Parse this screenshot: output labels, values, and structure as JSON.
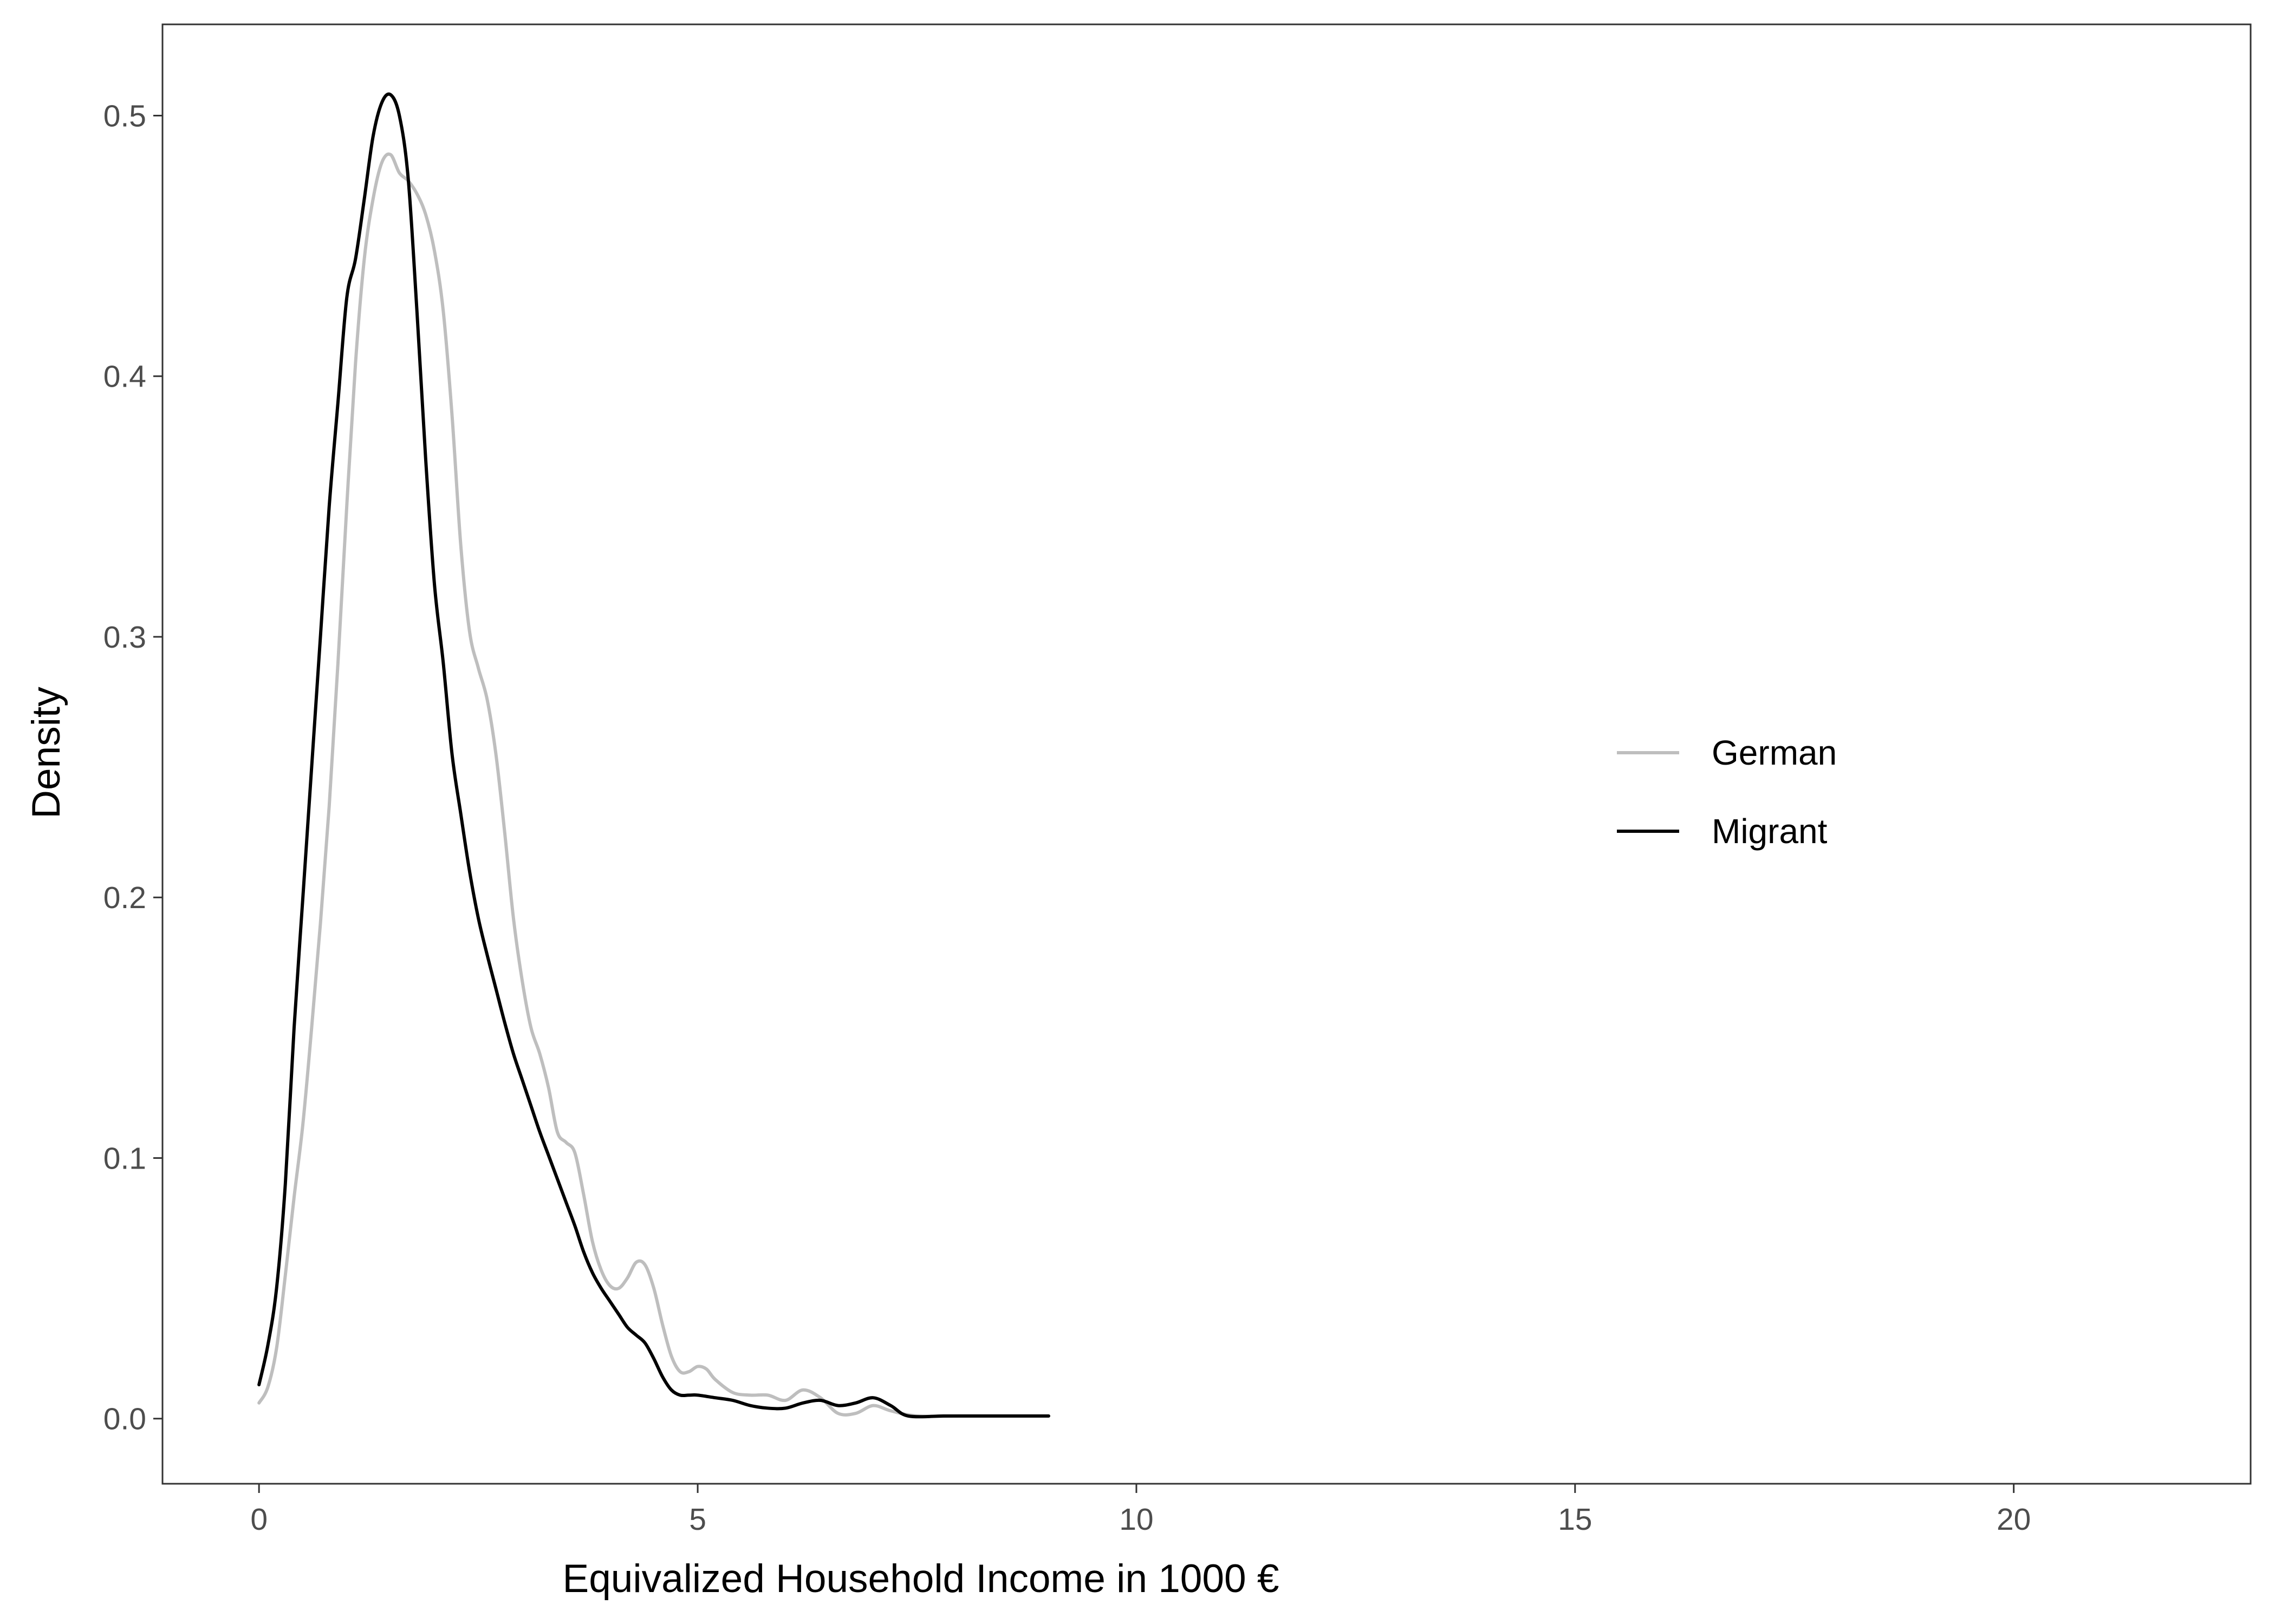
{
  "chart_data": {
    "type": "line",
    "title": "",
    "xlabel": "Equivalized Household Income in 1000 €",
    "ylabel": "Density",
    "xlim": [
      -1.1,
      22.7
    ],
    "ylim": [
      -0.025,
      0.535
    ],
    "x_ticks": [
      0,
      5,
      10,
      15,
      20
    ],
    "y_ticks": [
      0.0,
      0.1,
      0.2,
      0.3,
      0.4,
      0.5
    ],
    "x_tick_labels": [
      "0",
      "5",
      "10",
      "15",
      "20"
    ],
    "y_tick_labels": [
      "0.0",
      "0.1",
      "0.2",
      "0.3",
      "0.4",
      "0.5"
    ],
    "grid": false,
    "legend_position": "right",
    "series": [
      {
        "name": "German",
        "color": "#bebebe",
        "points": [
          [
            0.0,
            0.006
          ],
          [
            0.1,
            0.012
          ],
          [
            0.2,
            0.027
          ],
          [
            0.3,
            0.055
          ],
          [
            0.4,
            0.085
          ],
          [
            0.5,
            0.113
          ],
          [
            0.6,
            0.15
          ],
          [
            0.7,
            0.19
          ],
          [
            0.8,
            0.235
          ],
          [
            0.9,
            0.29
          ],
          [
            1.0,
            0.35
          ],
          [
            1.1,
            0.405
          ],
          [
            1.2,
            0.445
          ],
          [
            1.3,
            0.468
          ],
          [
            1.4,
            0.482
          ],
          [
            1.5,
            0.485
          ],
          [
            1.6,
            0.478
          ],
          [
            1.7,
            0.475
          ],
          [
            1.8,
            0.47
          ],
          [
            1.9,
            0.462
          ],
          [
            2.0,
            0.448
          ],
          [
            2.1,
            0.425
          ],
          [
            2.2,
            0.385
          ],
          [
            2.3,
            0.335
          ],
          [
            2.4,
            0.302
          ],
          [
            2.5,
            0.288
          ],
          [
            2.6,
            0.276
          ],
          [
            2.7,
            0.255
          ],
          [
            2.8,
            0.225
          ],
          [
            2.9,
            0.192
          ],
          [
            3.0,
            0.168
          ],
          [
            3.1,
            0.15
          ],
          [
            3.2,
            0.14
          ],
          [
            3.3,
            0.127
          ],
          [
            3.4,
            0.11
          ],
          [
            3.5,
            0.106
          ],
          [
            3.6,
            0.102
          ],
          [
            3.7,
            0.086
          ],
          [
            3.8,
            0.068
          ],
          [
            3.9,
            0.057
          ],
          [
            4.0,
            0.051
          ],
          [
            4.1,
            0.05
          ],
          [
            4.2,
            0.054
          ],
          [
            4.3,
            0.06
          ],
          [
            4.4,
            0.059
          ],
          [
            4.5,
            0.05
          ],
          [
            4.6,
            0.036
          ],
          [
            4.7,
            0.024
          ],
          [
            4.8,
            0.018
          ],
          [
            4.9,
            0.018
          ],
          [
            5.0,
            0.02
          ],
          [
            5.1,
            0.019
          ],
          [
            5.2,
            0.015
          ],
          [
            5.4,
            0.01
          ],
          [
            5.6,
            0.009
          ],
          [
            5.8,
            0.009
          ],
          [
            6.0,
            0.007
          ],
          [
            6.2,
            0.011
          ],
          [
            6.4,
            0.008
          ],
          [
            6.6,
            0.002
          ],
          [
            6.8,
            0.002
          ],
          [
            7.0,
            0.005
          ],
          [
            7.2,
            0.003
          ],
          [
            7.5,
            0.001
          ],
          [
            8.0,
            0.001
          ],
          [
            8.5,
            0.001
          ],
          [
            9.0,
            0.001
          ]
        ]
      },
      {
        "name": "Migrant",
        "color": "#000000",
        "points": [
          [
            0.0,
            0.013
          ],
          [
            0.1,
            0.028
          ],
          [
            0.2,
            0.05
          ],
          [
            0.3,
            0.09
          ],
          [
            0.4,
            0.15
          ],
          [
            0.5,
            0.2
          ],
          [
            0.6,
            0.25
          ],
          [
            0.7,
            0.3
          ],
          [
            0.8,
            0.35
          ],
          [
            0.9,
            0.39
          ],
          [
            1.0,
            0.43
          ],
          [
            1.1,
            0.445
          ],
          [
            1.2,
            0.468
          ],
          [
            1.3,
            0.492
          ],
          [
            1.4,
            0.505
          ],
          [
            1.5,
            0.508
          ],
          [
            1.6,
            0.5
          ],
          [
            1.7,
            0.476
          ],
          [
            1.8,
            0.425
          ],
          [
            1.9,
            0.368
          ],
          [
            2.0,
            0.32
          ],
          [
            2.1,
            0.29
          ],
          [
            2.2,
            0.255
          ],
          [
            2.3,
            0.232
          ],
          [
            2.4,
            0.21
          ],
          [
            2.5,
            0.192
          ],
          [
            2.6,
            0.178
          ],
          [
            2.7,
            0.165
          ],
          [
            2.8,
            0.152
          ],
          [
            2.9,
            0.14
          ],
          [
            3.0,
            0.13
          ],
          [
            3.1,
            0.12
          ],
          [
            3.2,
            0.11
          ],
          [
            3.3,
            0.101
          ],
          [
            3.4,
            0.092
          ],
          [
            3.5,
            0.083
          ],
          [
            3.6,
            0.074
          ],
          [
            3.7,
            0.064
          ],
          [
            3.8,
            0.056
          ],
          [
            3.9,
            0.05
          ],
          [
            4.0,
            0.045
          ],
          [
            4.1,
            0.04
          ],
          [
            4.2,
            0.035
          ],
          [
            4.3,
            0.032
          ],
          [
            4.4,
            0.029
          ],
          [
            4.5,
            0.023
          ],
          [
            4.6,
            0.016
          ],
          [
            4.7,
            0.011
          ],
          [
            4.8,
            0.009
          ],
          [
            4.9,
            0.009
          ],
          [
            5.0,
            0.009
          ],
          [
            5.2,
            0.008
          ],
          [
            5.4,
            0.007
          ],
          [
            5.6,
            0.005
          ],
          [
            5.8,
            0.004
          ],
          [
            6.0,
            0.004
          ],
          [
            6.2,
            0.006
          ],
          [
            6.4,
            0.007
          ],
          [
            6.6,
            0.005
          ],
          [
            6.8,
            0.006
          ],
          [
            7.0,
            0.008
          ],
          [
            7.2,
            0.005
          ],
          [
            7.4,
            0.001
          ],
          [
            7.8,
            0.001
          ],
          [
            8.0,
            0.001
          ],
          [
            8.5,
            0.001
          ],
          [
            9.0,
            0.001
          ]
        ]
      }
    ]
  }
}
